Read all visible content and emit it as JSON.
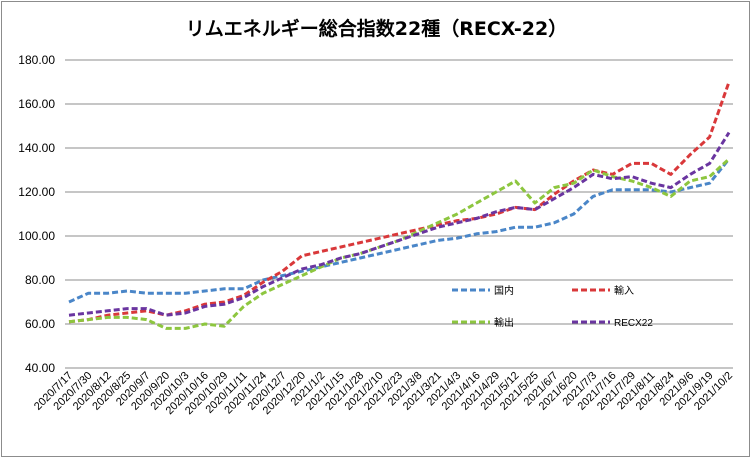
{
  "chart_data": {
    "type": "line",
    "title": "リムエネルギー総合指数22種（RECX-22）",
    "ylim": [
      40,
      180
    ],
    "y_ticks": [
      "40.00",
      "60.00",
      "80.00",
      "100.00",
      "120.00",
      "140.00",
      "160.00",
      "180.00"
    ],
    "grid": true,
    "legend_position": "inside-right",
    "categories": [
      "2020/7/17",
      "2020/7/30",
      "2020/8/12",
      "2020/8/25",
      "2020/9/7",
      "2020/9/20",
      "2020/10/3",
      "2020/10/16",
      "2020/10/29",
      "2020/11/11",
      "2020/11/24",
      "2020/12/7",
      "2020/12/20",
      "2021/1/2",
      "2021/1/15",
      "2021/1/28",
      "2021/2/10",
      "2021/2/23",
      "2021/3/8",
      "2021/3/21",
      "2021/4/3",
      "2021/4/16",
      "2021/4/29",
      "2021/5/12",
      "2021/5/25",
      "2021/6/7",
      "2021/6/20",
      "2021/7/3",
      "2021/7/16",
      "2021/7/29",
      "2021/8/11",
      "2021/8/24",
      "2021/9/6",
      "2021/9/19",
      "2021/10/2"
    ],
    "series": [
      {
        "name": "国内",
        "color": "#4a86c8",
        "values": [
          70,
          74,
          74,
          75,
          74,
          74,
          74,
          75,
          76,
          76,
          80,
          82,
          84,
          86,
          88,
          90,
          92,
          94,
          96,
          98,
          99,
          101,
          102,
          104,
          104,
          106,
          110,
          118,
          121,
          121,
          121,
          120,
          122,
          124,
          135
        ]
      },
      {
        "name": "輸入",
        "color": "#d9383a",
        "values": [
          61,
          62,
          64,
          65,
          66,
          64,
          66,
          69,
          70,
          73,
          79,
          84,
          91,
          93,
          95,
          97,
          99,
          101,
          103,
          105,
          107,
          108,
          110,
          113,
          112,
          119,
          125,
          130,
          128,
          133,
          133,
          128,
          137,
          145,
          170
        ]
      },
      {
        "name": "輸出",
        "color": "#8dc63f",
        "values": [
          61,
          62,
          63,
          63,
          62,
          58,
          58,
          60,
          59,
          68,
          74,
          78,
          82,
          86,
          90,
          92,
          95,
          98,
          102,
          106,
          110,
          115,
          120,
          125,
          115,
          122,
          124,
          130,
          127,
          125,
          122,
          118,
          125,
          127,
          135
        ]
      },
      {
        "name": "RECX22",
        "color": "#6a35a0",
        "values": [
          64,
          65,
          66,
          67,
          67,
          64,
          65,
          68,
          69,
          72,
          77,
          81,
          85,
          87,
          90,
          92,
          95,
          98,
          101,
          104,
          106,
          108,
          111,
          113,
          112,
          117,
          122,
          128,
          126,
          127,
          124,
          122,
          128,
          133,
          147
        ]
      }
    ]
  }
}
